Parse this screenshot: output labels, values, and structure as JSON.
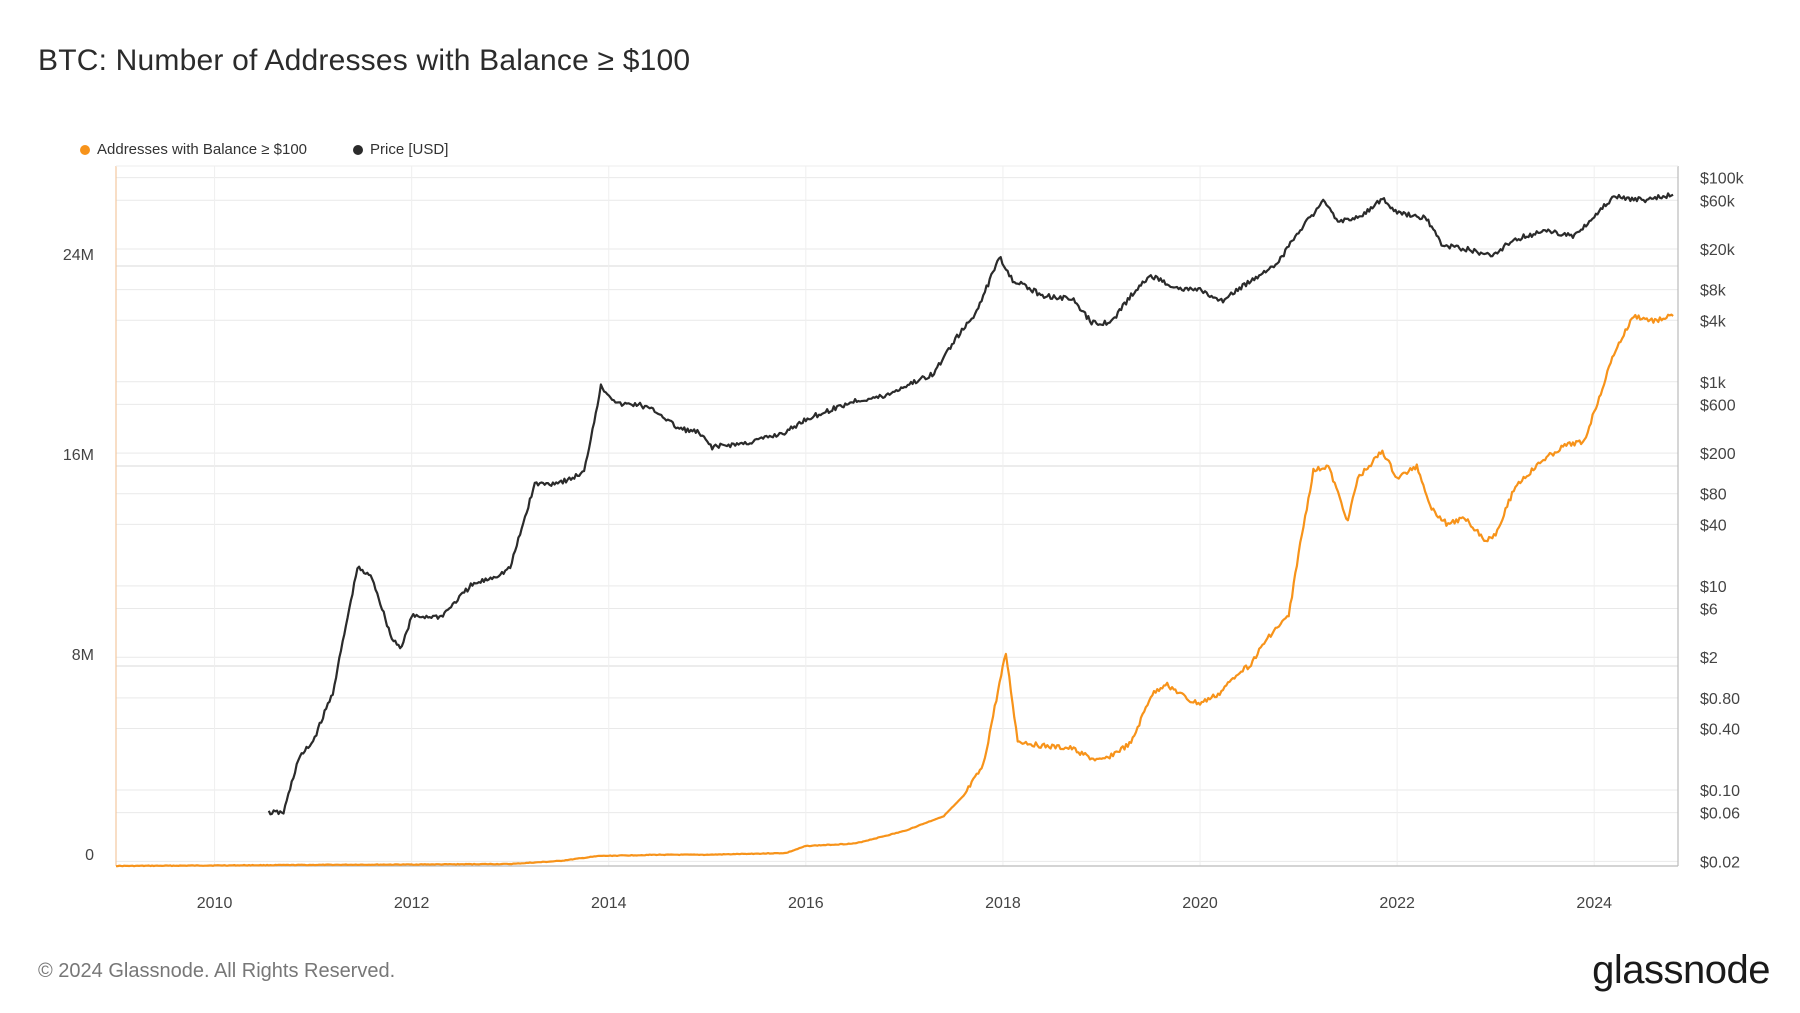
{
  "title": "BTC: Number of Addresses with Balance ≥ $100",
  "footer": "© 2024 Glassnode. All Rights Reserved.",
  "logo": "glassnode",
  "colors": {
    "addresses": "#f7931a",
    "price": "#2b2b2b",
    "grid": "#e9e9e9",
    "axis": "#cccccc"
  },
  "chart_data": {
    "type": "line",
    "title": "BTC: Number of Addresses with Balance ≥ $100",
    "legend_position": "top-left",
    "grid": true,
    "x_axis": {
      "min": 2009.0,
      "max": 2024.85,
      "ticks": [
        "2010",
        "2012",
        "2014",
        "2016",
        "2018",
        "2020",
        "2022",
        "2024"
      ]
    },
    "y_left": {
      "min": 0,
      "max": 28000000,
      "ticks": [
        {
          "v": 0,
          "label": "0"
        },
        {
          "v": 8000000,
          "label": "8M"
        },
        {
          "v": 16000000,
          "label": "16M"
        },
        {
          "v": 24000000,
          "label": "24M"
        }
      ]
    },
    "y_right": {
      "scale": "log",
      "min": 0.018,
      "max": 130000,
      "ticks": [
        {
          "v": 100000,
          "label": "$100k"
        },
        {
          "v": 60000,
          "label": "$60k"
        },
        {
          "v": 20000,
          "label": "$20k"
        },
        {
          "v": 8000,
          "label": "$8k"
        },
        {
          "v": 4000,
          "label": "$4k"
        },
        {
          "v": 1000,
          "label": "$1k"
        },
        {
          "v": 600,
          "label": "$600"
        },
        {
          "v": 200,
          "label": "$200"
        },
        {
          "v": 80,
          "label": "$80"
        },
        {
          "v": 40,
          "label": "$40"
        },
        {
          "v": 10,
          "label": "$10"
        },
        {
          "v": 6,
          "label": "$6"
        },
        {
          "v": 2,
          "label": "$2"
        },
        {
          "v": 0.8,
          "label": "$0.80"
        },
        {
          "v": 0.4,
          "label": "$0.40"
        },
        {
          "v": 0.1,
          "label": "$0.10"
        },
        {
          "v": 0.06,
          "label": "$0.06"
        },
        {
          "v": 0.02,
          "label": "$0.02"
        }
      ]
    },
    "series": [
      {
        "name": "Addresses with Balance ≥ $100",
        "axis": "left",
        "color": "#f7931a",
        "x": [
          2009.0,
          2011.3,
          2012.0,
          2013.0,
          2013.5,
          2013.9,
          2014.5,
          2015.0,
          2015.8,
          2016.0,
          2016.5,
          2017.0,
          2017.4,
          2017.6,
          2017.8,
          2017.95,
          2018.03,
          2018.15,
          2018.4,
          2018.7,
          2018.9,
          2019.0,
          2019.3,
          2019.5,
          2019.65,
          2019.9,
          2020.0,
          2020.2,
          2020.4,
          2020.5,
          2020.7,
          2020.9,
          2021.0,
          2021.15,
          2021.3,
          2021.5,
          2021.6,
          2021.85,
          2022.0,
          2022.2,
          2022.35,
          2022.5,
          2022.7,
          2022.9,
          2023.0,
          2023.2,
          2023.5,
          2023.7,
          2023.9,
          2024.2,
          2024.4,
          2024.6,
          2024.8
        ],
        "values": [
          0,
          50000,
          60000,
          80000,
          200000,
          400000,
          450000,
          450000,
          520000,
          800000,
          900000,
          1400000,
          2000000,
          2800000,
          4000000,
          7000000,
          8500000,
          5000000,
          4800000,
          4700000,
          4300000,
          4200000,
          4900000,
          6800000,
          7300000,
          6600000,
          6500000,
          6900000,
          7800000,
          8000000,
          9200000,
          10000000,
          12500000,
          15800000,
          16000000,
          13800000,
          15500000,
          16600000,
          15500000,
          16000000,
          14300000,
          13700000,
          13900000,
          13000000,
          13300000,
          15200000,
          16300000,
          16800000,
          17000000,
          20500000,
          22000000,
          21800000,
          22000000
        ]
      },
      {
        "name": "Price [USD]",
        "axis": "right",
        "color": "#2b2b2b",
        "x": [
          2010.55,
          2010.7,
          2010.85,
          2011.0,
          2011.2,
          2011.45,
          2011.6,
          2011.8,
          2011.9,
          2012.0,
          2012.3,
          2012.6,
          2012.9,
          2013.0,
          2013.25,
          2013.4,
          2013.6,
          2013.75,
          2013.92,
          2014.1,
          2014.3,
          2014.5,
          2014.7,
          2014.9,
          2015.05,
          2015.4,
          2015.8,
          2016.0,
          2016.5,
          2016.8,
          2017.0,
          2017.3,
          2017.5,
          2017.7,
          2017.85,
          2017.96,
          2018.1,
          2018.4,
          2018.7,
          2018.9,
          2019.1,
          2019.3,
          2019.5,
          2019.8,
          2020.0,
          2020.2,
          2020.5,
          2020.8,
          2021.0,
          2021.25,
          2021.4,
          2021.6,
          2021.85,
          2022.0,
          2022.3,
          2022.45,
          2022.7,
          2022.95,
          2023.2,
          2023.5,
          2023.8,
          2024.0,
          2024.2,
          2024.5,
          2024.8
        ],
        "values": [
          0.06,
          0.06,
          0.2,
          0.3,
          0.9,
          15,
          12,
          3,
          2.5,
          5,
          5,
          10,
          13,
          15,
          100,
          100,
          110,
          130,
          900,
          600,
          600,
          500,
          350,
          320,
          230,
          250,
          320,
          430,
          650,
          720,
          900,
          1200,
          2500,
          4300,
          9000,
          17000,
          10000,
          7000,
          6500,
          3800,
          3800,
          7000,
          11000,
          8000,
          8000,
          6000,
          9500,
          15000,
          30000,
          58000,
          38000,
          40000,
          62000,
          45000,
          40000,
          22000,
          20000,
          17000,
          25000,
          30000,
          27000,
          42000,
          65000,
          60000,
          68000
        ]
      }
    ]
  }
}
